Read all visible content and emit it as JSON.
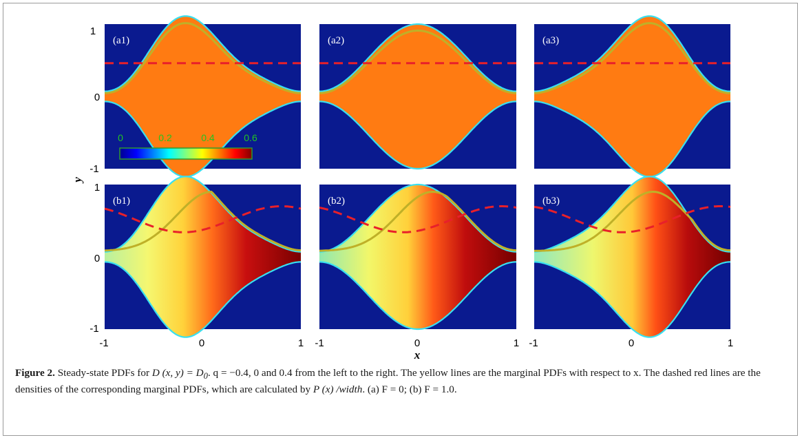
{
  "figure": {
    "panels": [
      {
        "label": "(a1)",
        "row": "a",
        "q": -0.4
      },
      {
        "label": "(a2)",
        "row": "a",
        "q": 0
      },
      {
        "label": "(a3)",
        "row": "a",
        "q": 0.4
      },
      {
        "label": "(b1)",
        "row": "b",
        "q": -0.4
      },
      {
        "label": "(b2)",
        "row": "b",
        "q": 0
      },
      {
        "label": "(b3)",
        "row": "b",
        "q": 0.4
      }
    ],
    "y_axis_label": "y",
    "x_axis_label": "x",
    "y_ticks": [
      "1",
      "0",
      "-1"
    ],
    "x_ticks": [
      "-1",
      "0",
      "1"
    ],
    "colorbar": {
      "ticks": [
        "0",
        "0.2",
        "0.4",
        "0.6"
      ],
      "range": [
        0,
        0.6
      ]
    },
    "colors": {
      "background": "#0a1a8f",
      "boundary": "#38e0f0",
      "uniform_fill": "#ff7b12",
      "yellow_line": "#bfb028",
      "red_dash": "#e8202a"
    }
  },
  "caption": {
    "label": "Figure 2.",
    "part1": "Steady-state PDFs for",
    "D_expr": "D (x, y) = D",
    "D_sub": "0",
    "part2": ". q = −0.4, 0 and 0.4 from the left to the right. The yellow lines are the marginal PDFs with respect to x. The dashed red lines are the densities of the corresponding marginal PDFs, which are calculated by",
    "P_expr": "P (x) /width",
    "part3": ". (a) F = 0; (b) F = 1.0."
  }
}
